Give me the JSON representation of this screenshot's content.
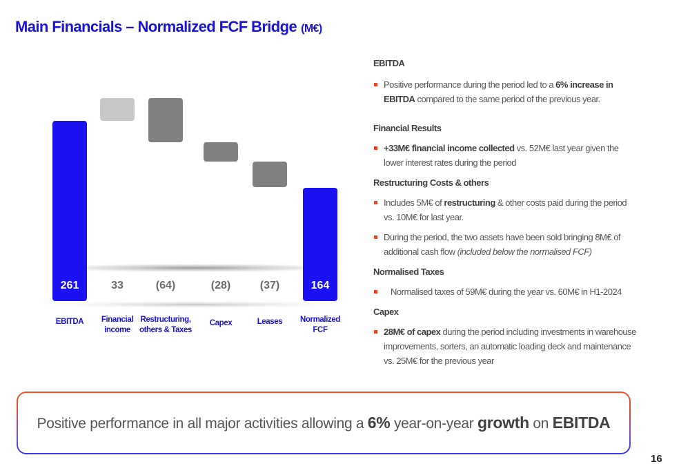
{
  "header": {
    "title": "Main Financials – Normalized FCF Bridge",
    "unit": "(M€)"
  },
  "chart_data": {
    "type": "bar",
    "subtype": "waterfall",
    "categories": [
      "EBITDA",
      "Financial income",
      "Restructuring, others & Taxes",
      "Capex",
      "Leases",
      "Normalized FCF"
    ],
    "category_lines": [
      [
        "EBITDA"
      ],
      [
        "Financial",
        "income"
      ],
      [
        "Restructuring,",
        "others & Taxes"
      ],
      [
        "Capex"
      ],
      [
        "Leases"
      ],
      [
        "Normalized",
        "FCF"
      ]
    ],
    "values": [
      261,
      33,
      -64,
      -28,
      -37,
      164
    ],
    "data_labels": [
      "261",
      "33",
      "(64)",
      "(28)",
      "(37)",
      "164"
    ],
    "kinds": [
      "total",
      "increase",
      "decrease",
      "decrease",
      "decrease",
      "total"
    ],
    "colors": {
      "total": "#1a12f0",
      "increase": "#c8c8c8",
      "decrease": "#808080",
      "label_total": "#ffffff",
      "label_delta": "#6a6a6a",
      "category": "#1a12d6"
    },
    "ylim": [
      0,
      300
    ],
    "grid": false,
    "legend": "none"
  },
  "commentary": {
    "ebitda": {
      "title": "EBITDA",
      "b1": {
        "t1": "Positive performance during the period led to a ",
        "bold": "6% increase in EBITDA",
        "t2": " compared to the same period of the previous year."
      }
    },
    "financial": {
      "title": "Financial Results",
      "b1": {
        "bold": "+33M€ financial income collected",
        "t2": " vs. 52M€ last year given the lower interest rates during the period"
      }
    },
    "restructuring": {
      "title": "Restructuring Costs & others",
      "b1": {
        "t1": "Includes 5M€ of ",
        "bold": "restructuring",
        "t2": " & other costs paid during the period vs. 10M€ for last year."
      },
      "b2": {
        "t1": "During the period, the two assets have been sold bringing 8M€ of additional cash flow ",
        "italic": "(included below the normalised FCF)"
      }
    },
    "taxes": {
      "title": "Normalised Taxes",
      "b1": {
        "t1": "Normalised taxes of 59M€ during the year vs. 60M€ in H1-2024"
      }
    },
    "capex": {
      "title": "Capex",
      "b1": {
        "bold": "28M€ of capex",
        "t2": " during the period including investments in warehouse improvements, sorters, an automatic loading deck and maintenance vs. 25M€ for the previous year"
      }
    }
  },
  "banner": {
    "t1": "Positive performance in all major activities allowing a ",
    "b1": "6%",
    "t2": " year-on-year ",
    "b2": "growth",
    "t3": " on ",
    "b3": "EBITDA"
  },
  "footer": {
    "page_number": "16"
  }
}
